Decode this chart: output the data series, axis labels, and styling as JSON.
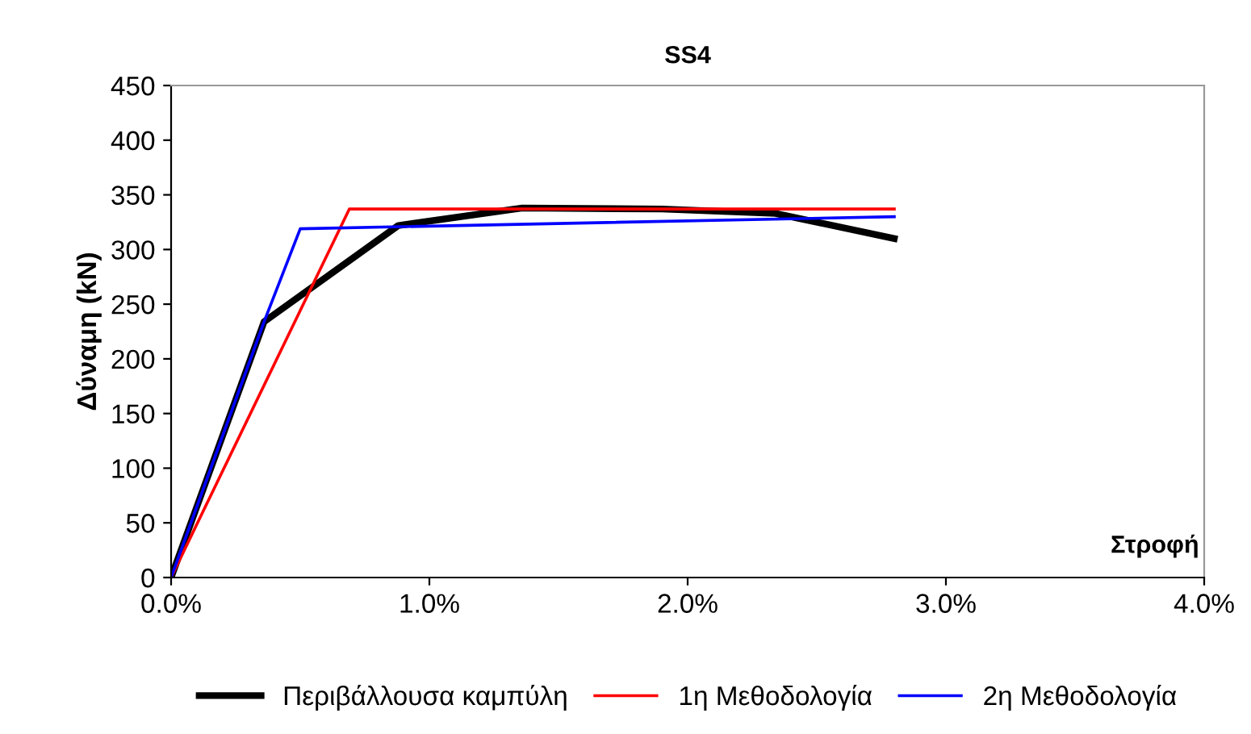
{
  "chart_data": {
    "type": "line",
    "title": "SS4",
    "xlabel": "Στροφή",
    "ylabel": "Δύναμη (kN)",
    "xlim": [
      0,
      4
    ],
    "xticks": [
      {
        "value": 0,
        "label": "0.0%"
      },
      {
        "value": 1,
        "label": "1.0%"
      },
      {
        "value": 2,
        "label": "2.0%"
      },
      {
        "value": 3,
        "label": "3.0%"
      },
      {
        "value": 4,
        "label": "4.0%"
      }
    ],
    "ylim": [
      0,
      450
    ],
    "yticks": [
      0,
      50,
      100,
      150,
      200,
      250,
      300,
      350,
      400,
      450
    ],
    "grid": false,
    "legend": "bottom",
    "marker": "none",
    "line_style": "solid",
    "series": [
      {
        "name": "Περιβάλλουσα καμπύλη",
        "color": "#000000",
        "x": [
          0,
          0.36,
          0.88,
          1.36,
          1.9,
          2.34,
          2.8
        ],
        "values": [
          0,
          234,
          322,
          338,
          337,
          333,
          310
        ]
      },
      {
        "name": "1η Μεθοδολογία",
        "color": "#ff0000",
        "x": [
          0,
          0.69,
          2.8
        ],
        "values": [
          0,
          337,
          337
        ]
      },
      {
        "name": "2η Μεθοδολογία",
        "color": "#0000ff",
        "x": [
          0,
          0.36,
          0.5,
          2.8
        ],
        "values": [
          0,
          234,
          319,
          330
        ]
      }
    ]
  }
}
